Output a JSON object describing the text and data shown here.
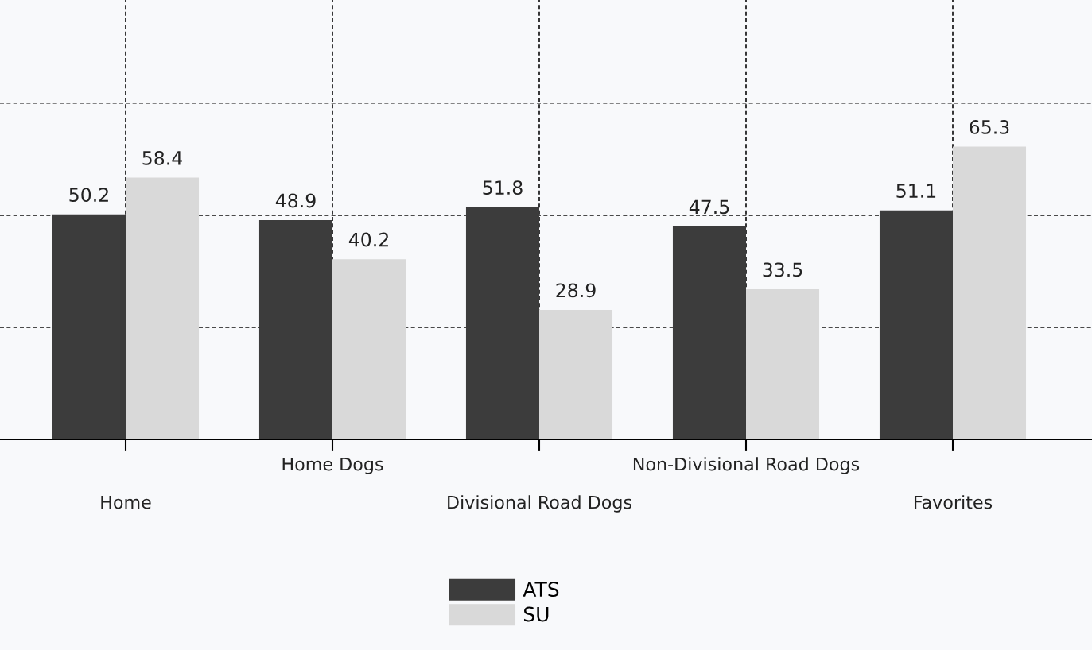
{
  "chart_data": {
    "type": "bar",
    "categories": [
      "Home",
      "Home Dogs",
      "Divisional Road Dogs",
      "Non-Divisional Road Dogs",
      "Favorites"
    ],
    "series": [
      {
        "name": "ATS",
        "color": "#3c3c3c",
        "values": [
          50.2,
          48.9,
          51.8,
          47.5,
          51.1
        ]
      },
      {
        "name": "SU",
        "color": "#d9d9d9",
        "values": [
          58.4,
          40.2,
          28.9,
          33.5,
          65.3
        ]
      }
    ],
    "ylim": [
      0,
      98
    ],
    "yticks": [
      {
        "value": 25,
        "label": null
      },
      {
        "value": 50,
        "label": null
      },
      {
        "value": 75,
        "label": null
      }
    ],
    "tick_labels": "x",
    "grid": true,
    "legend": "bottom",
    "data_labels": true
  }
}
